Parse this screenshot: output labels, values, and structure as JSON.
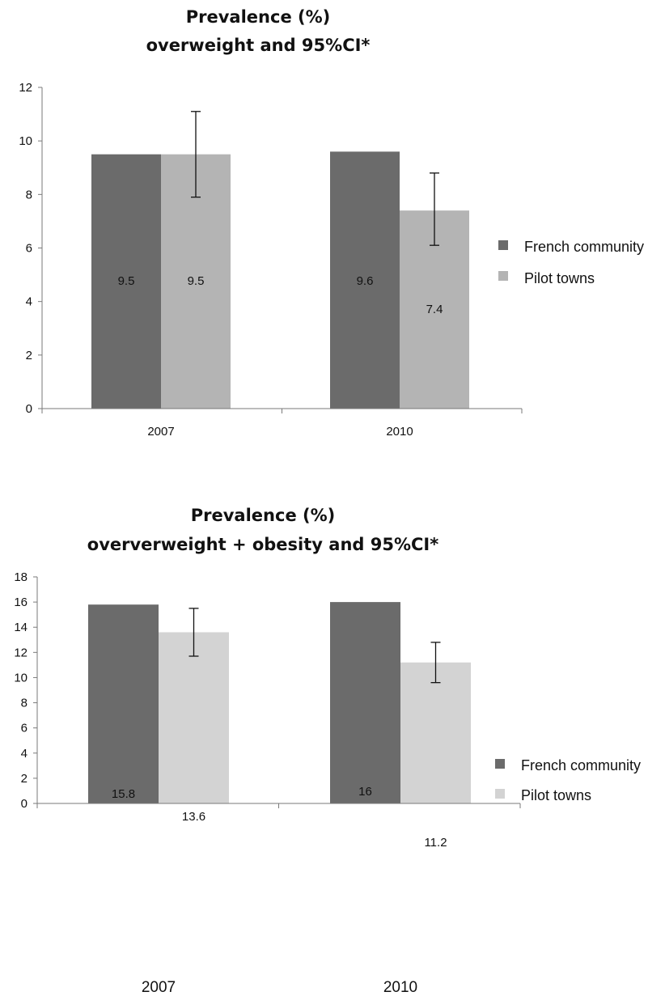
{
  "chart_data": [
    {
      "type": "bar",
      "title": [
        "Prevalence (%)",
        "overweight and 95%CI*"
      ],
      "categories": [
        "2007",
        "2010"
      ],
      "series": [
        {
          "name": "French community",
          "color": "#6b6b6b",
          "values": [
            9.5,
            9.6
          ],
          "labels": [
            "9.5",
            "9.6"
          ]
        },
        {
          "name": "Pilot towns",
          "color": "#b4b4b4",
          "values": [
            9.5,
            7.4
          ],
          "labels": [
            "9.5",
            "7.4"
          ],
          "ci": [
            [
              7.9,
              11.1
            ],
            [
              6.1,
              8.8
            ]
          ]
        }
      ],
      "ylim": [
        0,
        12
      ],
      "yticks": [
        0,
        2,
        4,
        6,
        8,
        10,
        12
      ],
      "legend_position": "right"
    },
    {
      "type": "bar",
      "title": [
        "Prevalence (%)",
        "oververweight + obesity and 95%CI*"
      ],
      "categories": [
        "2007",
        "2010"
      ],
      "series": [
        {
          "name": "French community",
          "color": "#6b6b6b",
          "values": [
            15.8,
            16
          ],
          "labels": [
            "15.8",
            "16"
          ]
        },
        {
          "name": "Pilot towns",
          "color": "#d3d3d3",
          "values": [
            13.6,
            11.2
          ],
          "labels": [
            "13.6",
            "11.2"
          ],
          "ci": [
            [
              11.7,
              15.5
            ],
            [
              9.6,
              12.8
            ]
          ]
        }
      ],
      "ylim": [
        0,
        18
      ],
      "yticks": [
        0,
        2,
        4,
        6,
        8,
        10,
        12,
        14,
        16,
        18
      ],
      "legend_position": "right"
    }
  ]
}
